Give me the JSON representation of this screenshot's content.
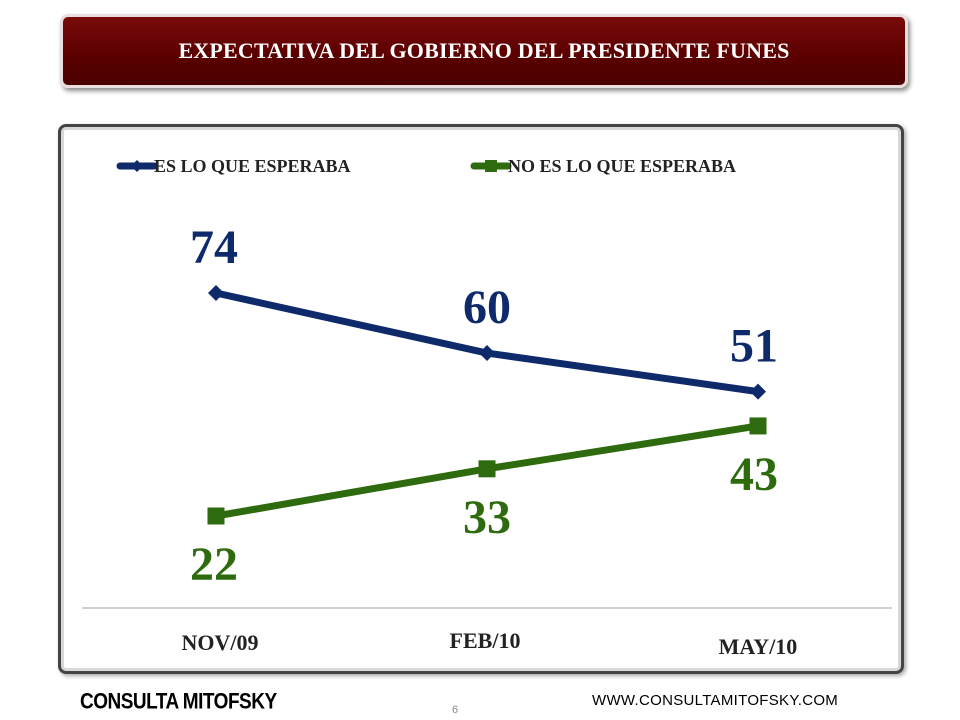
{
  "header": {
    "title": "EXPECTATIVA DEL GOBIERNO DEL PRESIDENTE FUNES"
  },
  "chart_data": {
    "type": "line",
    "categories": [
      "NOV/09",
      "FEB/10",
      "MAY/10"
    ],
    "series": [
      {
        "name": "ES LO QUE ESPERABA",
        "values": [
          74,
          60,
          51
        ],
        "color": "#0f2a6b",
        "marker": "diamond"
      },
      {
        "name": "NO ES LO QUE ESPERABA",
        "values": [
          22,
          33,
          43
        ],
        "color": "#2e6b0e",
        "marker": "square"
      }
    ],
    "title": "",
    "xlabel": "",
    "ylabel": "",
    "legend": "top",
    "grid": false
  },
  "footer": {
    "brand": "CONSULTA MITOFSKY",
    "page_number": "6",
    "website": "WWW.CONSULTAMITOFSKY.COM"
  }
}
